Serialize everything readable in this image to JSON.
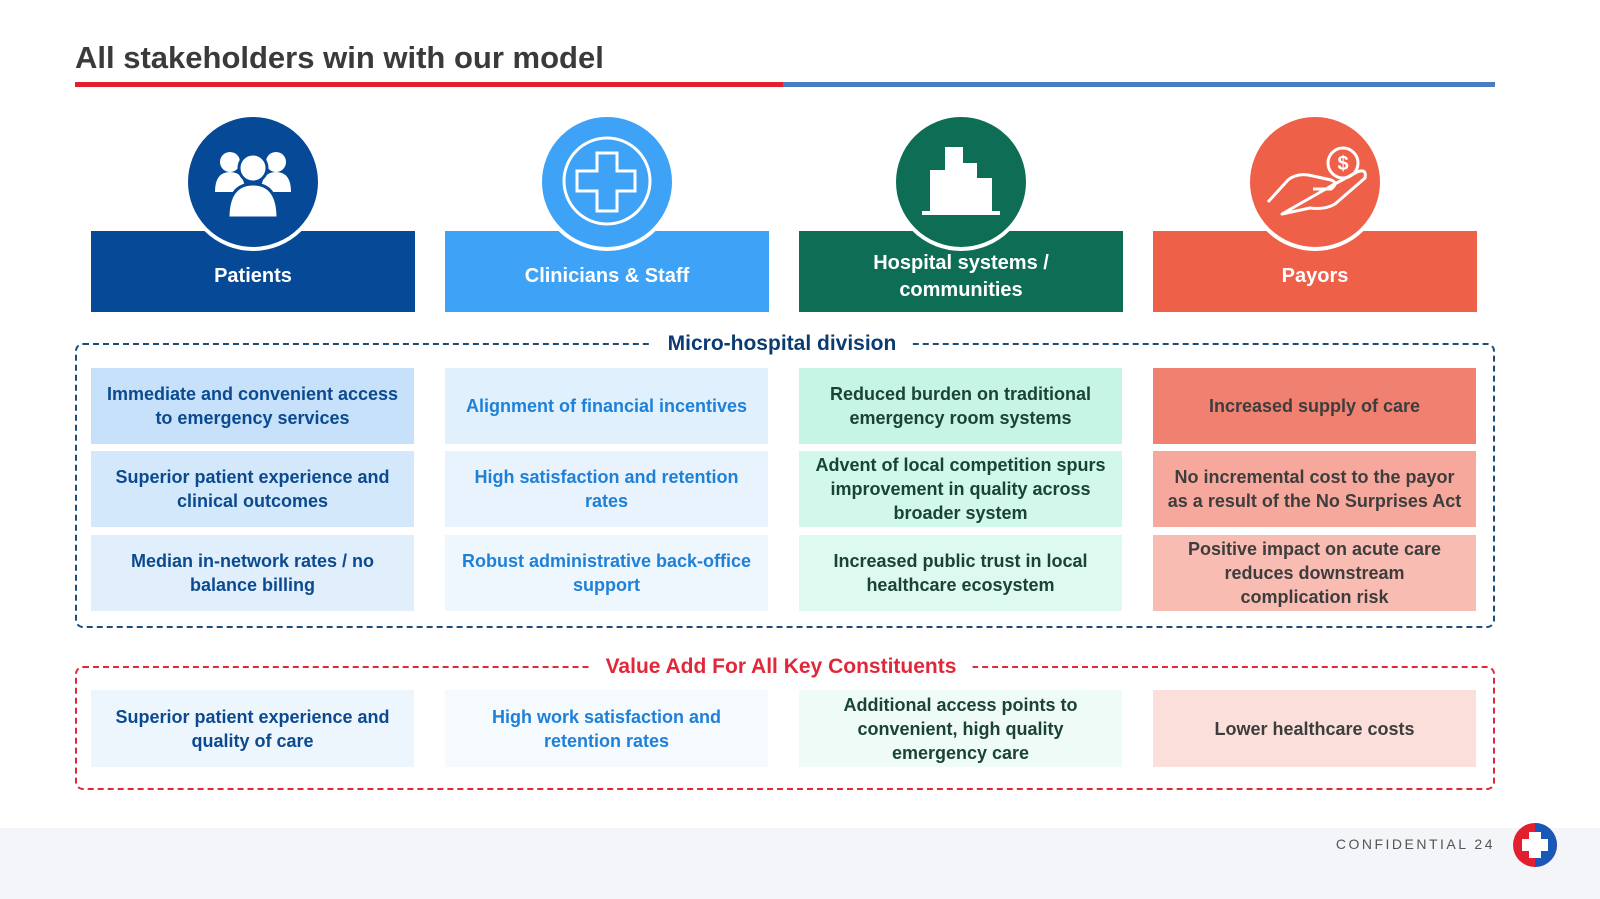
{
  "title": "All stakeholders win with our model",
  "sections": {
    "micro": "Micro-hospital division",
    "value": "Value Add For All Key Constituents"
  },
  "columns": [
    {
      "name": "Patients",
      "micro": [
        "Immediate and convenient access to emergency services",
        "Superior patient experience and clinical outcomes",
        "Median in-network rates / no balance billing"
      ],
      "value": "Superior patient experience and quality of care"
    },
    {
      "name": "Clinicians & Staff",
      "micro": [
        "Alignment of financial incentives",
        "High satisfaction and retention rates",
        "Robust administrative back-office support"
      ],
      "value": "High work satisfaction and retention rates"
    },
    {
      "name": "Hospital systems / communities",
      "micro": [
        "Reduced burden on traditional emergency room systems",
        "Advent of local competition spurs improvement in quality across broader system",
        "Increased public trust in local healthcare ecosystem"
      ],
      "value": "Additional access points to convenient, high quality emergency care"
    },
    {
      "name": "Payors",
      "micro": [
        "Increased supply of care",
        "No incremental cost to the payor as a result of the No Surprises Act",
        "Positive impact on acute care reduces downstream complication risk"
      ],
      "value": "Lower healthcare costs"
    }
  ],
  "footer": {
    "confidential": "CONFIDENTIAL",
    "page": 24
  }
}
